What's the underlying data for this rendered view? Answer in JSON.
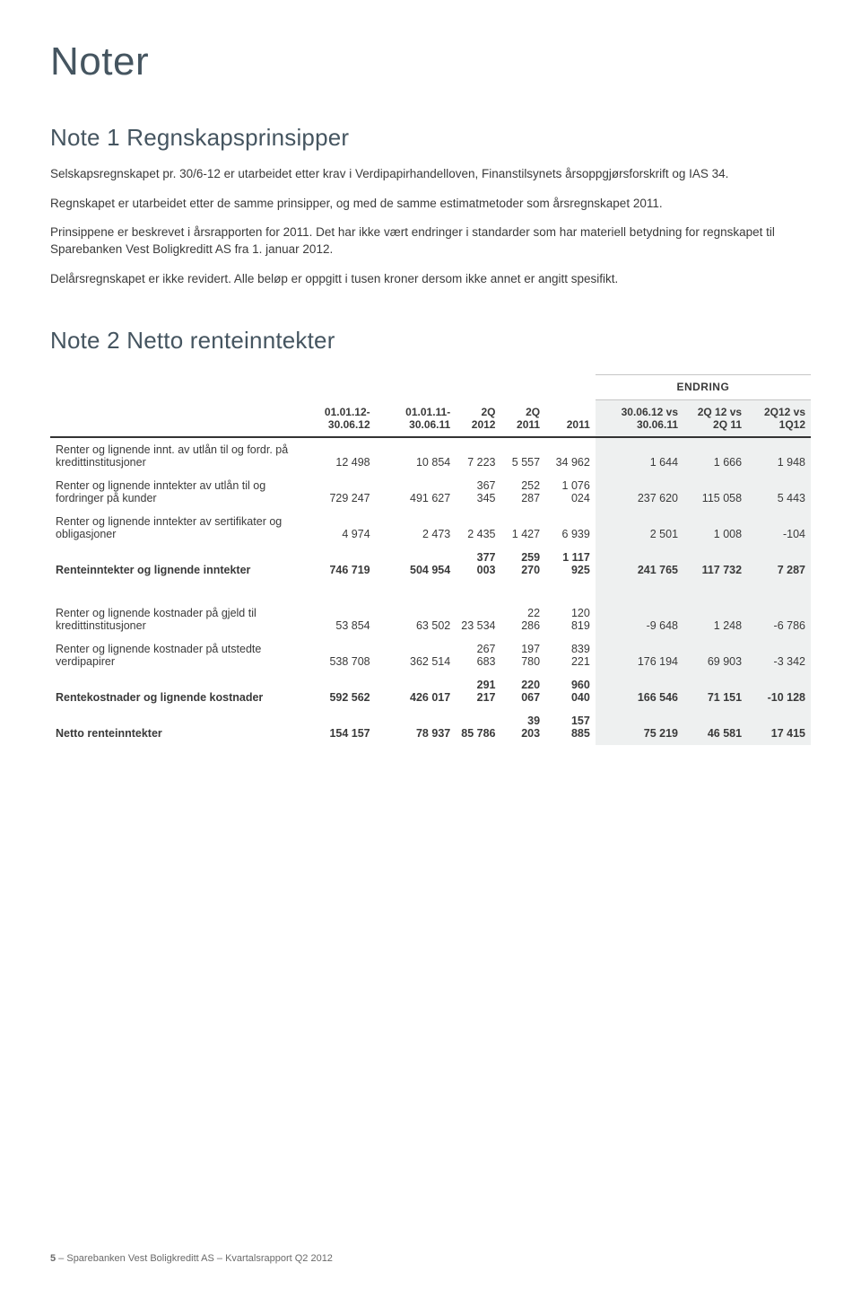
{
  "page_title": "Noter",
  "note1": {
    "heading": "Note 1 Regnskapsprinsipper",
    "para1": "Selskapsregnskapet pr. 30/6-12 er utarbeidet etter krav i Verdipapirhandelloven, Finanstilsynets årsoppgjørsforskrift og IAS 34.",
    "para2": "Regnskapet er utarbeidet etter de samme prinsipper, og med de samme estimatmetoder som  årsregnskapet 2011.",
    "para3": "Prinsippene er beskrevet i årsrapporten for 2011. Det har ikke vært endringer i standarder som har materiell betydning for regnskapet til Sparebanken Vest Boligkreditt AS fra 1. januar 2012.",
    "para4": "Delårsregnskapet er ikke revidert. Alle beløp er oppgitt i tusen kroner dersom ikke annet er angitt spesifikt."
  },
  "note2": {
    "heading": "Note 2 Netto renteinntekter",
    "endring_label": "ENDRING",
    "columns": {
      "c1": "01.01.12-30.06.12",
      "c2": "01.01.11-30.06.11",
      "c3": "2Q 2012",
      "c4": "2Q 2011",
      "c5": "2011",
      "c6": "30.06.12 vs 30.06.11",
      "c7": "2Q 12 vs 2Q 11",
      "c8": "2Q12 vs 1Q12"
    },
    "rows": [
      {
        "label": "Renter og lignende innt. av utlån til og fordr. på kredittinstitusjoner",
        "v": [
          "12 498",
          "10 854",
          "7 223",
          "5 557",
          "34 962",
          "1 644",
          "1 666",
          "1 948"
        ],
        "bold": false
      },
      {
        "label": "Renter og lignende inntekter av utlån til og fordringer på kunder",
        "v": [
          "729 247",
          "491 627",
          "367 345",
          "252 287",
          "1 076 024",
          "237 620",
          "115 058",
          "5 443"
        ],
        "bold": false
      },
      {
        "label": "Renter og lignende inntekter av sertifikater og obligasjoner",
        "v": [
          "4 974",
          "2 473",
          "2 435",
          "1 427",
          "6 939",
          "2 501",
          "1 008",
          "-104"
        ],
        "bold": false
      },
      {
        "label": "Renteinntekter og lignende inntekter",
        "v": [
          "746 719",
          "504 954",
          "377 003",
          "259 270",
          "1 117 925",
          "241 765",
          "117 732",
          "7 287"
        ],
        "bold": true
      }
    ],
    "rows2": [
      {
        "label": "Renter og lignende kostnader på gjeld til kredittinstitusjoner",
        "v": [
          "53 854",
          "63 502",
          "23 534",
          "22 286",
          "120 819",
          "-9 648",
          "1 248",
          "-6 786"
        ],
        "bold": false
      },
      {
        "label": "Renter og lignende kostnader på utstedte verdipapirer",
        "v": [
          "538 708",
          "362 514",
          "267 683",
          "197 780",
          "839 221",
          "176 194",
          "69 903",
          "-3 342"
        ],
        "bold": false
      },
      {
        "label": "Rentekostnader og lignende kostnader",
        "v": [
          "592 562",
          "426 017",
          "291 217",
          "220 067",
          "960 040",
          "166 546",
          "71 151",
          "-10 128"
        ],
        "bold": true
      },
      {
        "label": "Netto renteinntekter",
        "v": [
          "154 157",
          "78 937",
          "85 786",
          "39 203",
          "157 885",
          "75 219",
          "46 581",
          "17 415"
        ],
        "bold": true
      }
    ]
  },
  "footer": {
    "page_num": "5",
    "text": " – Sparebanken Vest Boligkreditt AS – Kvartalsrapport Q2 2012"
  }
}
